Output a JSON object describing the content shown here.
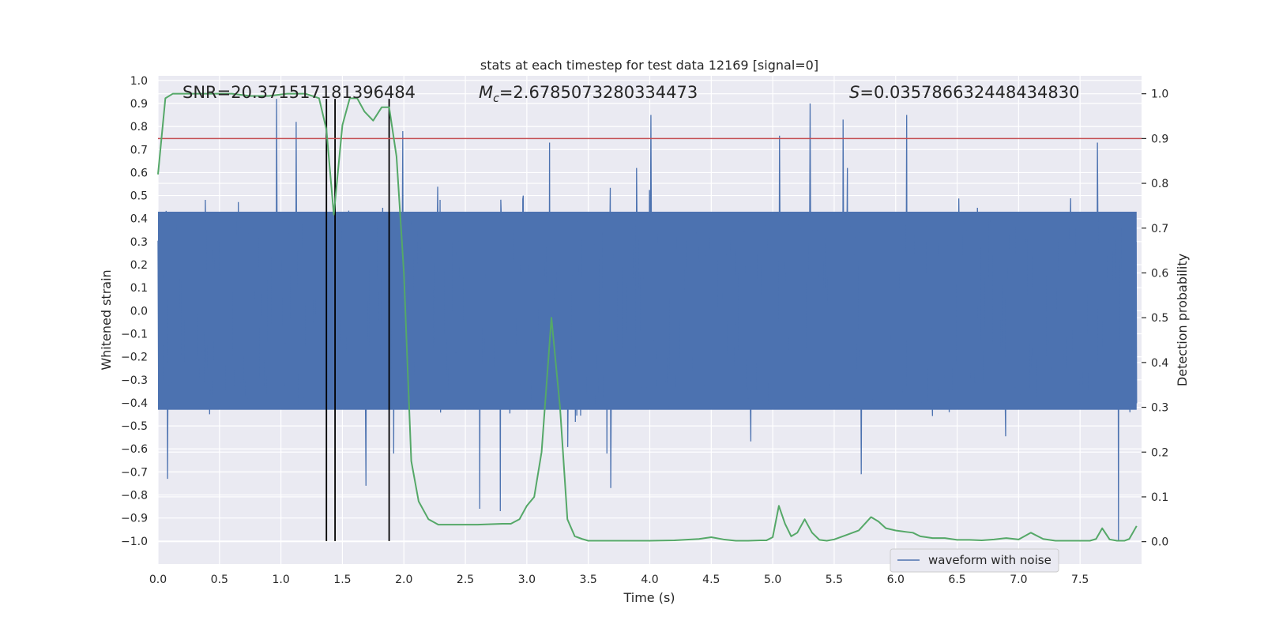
{
  "chart_data": {
    "type": "line",
    "title": "stats at each timestep for test data 12169 [signal=0]",
    "xlabel": "Time (s)",
    "ylabel_left": "Whitened strain",
    "ylabel_right": "Detection probability",
    "xlim": [
      0.0,
      8.0
    ],
    "ylim_left": [
      -1.1,
      1.02
    ],
    "ylim_right": [
      -0.05,
      1.04
    ],
    "x_ticks": [
      "0.0",
      "0.5",
      "1.0",
      "1.5",
      "2.0",
      "2.5",
      "3.0",
      "3.5",
      "4.0",
      "4.5",
      "5.0",
      "5.5",
      "6.0",
      "6.5",
      "7.0",
      "7.5"
    ],
    "x_tick_values": [
      0.0,
      0.5,
      1.0,
      1.5,
      2.0,
      2.5,
      3.0,
      3.5,
      4.0,
      4.5,
      5.0,
      5.5,
      6.0,
      6.5,
      7.0,
      7.5
    ],
    "y_left_ticks": [
      "1.0",
      "0.9",
      "0.8",
      "0.7",
      "0.6",
      "0.5",
      "0.4",
      "0.3",
      "0.2",
      "0.1",
      "0.0",
      "−0.1",
      "−0.2",
      "−0.3",
      "−0.4",
      "−0.5",
      "−0.6",
      "−0.7",
      "−0.8",
      "−0.9",
      "−1.0"
    ],
    "y_left_tick_values": [
      1.0,
      0.9,
      0.8,
      0.7,
      0.6,
      0.5,
      0.4,
      0.3,
      0.2,
      0.1,
      0.0,
      -0.1,
      -0.2,
      -0.3,
      -0.4,
      -0.5,
      -0.6,
      -0.7,
      -0.8,
      -0.9,
      -1.0
    ],
    "y_right_ticks": [
      "1.0",
      "0.9",
      "0.8",
      "0.7",
      "0.6",
      "0.5",
      "0.4",
      "0.3",
      "0.2",
      "0.1",
      "0.0"
    ],
    "y_right_tick_values": [
      1.0,
      0.9,
      0.8,
      0.7,
      0.6,
      0.5,
      0.4,
      0.3,
      0.2,
      0.1,
      0.0
    ],
    "annotations": {
      "snr": "SNR=20.371517181396484",
      "mc_symbol": "M",
      "mc_subscript": "c",
      "mc_value": "=2.6785073280334473",
      "s_symbol": "S",
      "s_value": "=0.035786632448434830"
    },
    "threshold": {
      "axis": "right",
      "value": 0.9,
      "color": "#c44e52"
    },
    "vertical_markers": {
      "x": [
        1.37,
        1.44,
        1.88
      ],
      "y_range": [
        -1.0,
        0.92
      ],
      "color": "#000000"
    },
    "waveform": {
      "name": "waveform with noise",
      "color": "#4c72b0",
      "duration_s": 8.0,
      "samples": 2048,
      "seed": 12169,
      "noise_std": 0.17,
      "core_band": [
        -0.43,
        0.43
      ],
      "spikes": [
        {
          "t": 0.97,
          "v": 0.92
        },
        {
          "t": 1.13,
          "v": 0.82
        },
        {
          "t": 2.0,
          "v": 0.78
        },
        {
          "t": 3.2,
          "v": 0.73
        },
        {
          "t": 4.03,
          "v": 0.85
        },
        {
          "t": 5.08,
          "v": 0.76
        },
        {
          "t": 5.33,
          "v": 0.9
        },
        {
          "t": 5.6,
          "v": 0.83
        },
        {
          "t": 6.12,
          "v": 0.85
        },
        {
          "t": 7.68,
          "v": 0.73
        },
        {
          "t": 0.08,
          "v": -0.73
        },
        {
          "t": 1.7,
          "v": -0.76
        },
        {
          "t": 2.63,
          "v": -0.86
        },
        {
          "t": 2.8,
          "v": -0.87
        },
        {
          "t": 3.7,
          "v": -0.77
        },
        {
          "t": 5.75,
          "v": -0.71
        },
        {
          "t": 7.85,
          "v": -1.0
        }
      ]
    },
    "probability": {
      "name": "detection probability",
      "color": "#55a868",
      "x": [
        0.0,
        0.06,
        0.12,
        0.2,
        0.3,
        0.45,
        0.6,
        0.75,
        0.9,
        1.05,
        1.2,
        1.31,
        1.37,
        1.43,
        1.5,
        1.56,
        1.62,
        1.68,
        1.75,
        1.82,
        1.88,
        1.94,
        2.0,
        2.06,
        2.12,
        2.2,
        2.28,
        2.4,
        2.6,
        2.8,
        2.87,
        2.94,
        3.0,
        3.06,
        3.12,
        3.2,
        3.27,
        3.33,
        3.39,
        3.45,
        3.5,
        3.6,
        3.8,
        4.0,
        4.2,
        4.4,
        4.5,
        4.6,
        4.7,
        4.8,
        4.9,
        4.95,
        5.0,
        5.05,
        5.1,
        5.15,
        5.2,
        5.26,
        5.32,
        5.38,
        5.44,
        5.5,
        5.6,
        5.7,
        5.8,
        5.86,
        5.92,
        6.0,
        6.08,
        6.14,
        6.2,
        6.3,
        6.4,
        6.5,
        6.6,
        6.7,
        6.8,
        6.9,
        7.0,
        7.1,
        7.2,
        7.3,
        7.4,
        7.5,
        7.58,
        7.63,
        7.68,
        7.74,
        7.8,
        7.86,
        7.9,
        7.96
      ],
      "y": [
        0.82,
        0.99,
        1.0,
        1.0,
        1.0,
        1.0,
        1.0,
        0.995,
        0.995,
        1.0,
        1.0,
        0.99,
        0.92,
        0.73,
        0.93,
        0.99,
        0.99,
        0.96,
        0.94,
        0.97,
        0.97,
        0.86,
        0.6,
        0.18,
        0.09,
        0.05,
        0.038,
        0.038,
        0.038,
        0.04,
        0.04,
        0.05,
        0.08,
        0.1,
        0.2,
        0.5,
        0.3,
        0.05,
        0.012,
        0.006,
        0.002,
        0.002,
        0.002,
        0.002,
        0.003,
        0.006,
        0.01,
        0.005,
        0.002,
        0.002,
        0.003,
        0.003,
        0.01,
        0.08,
        0.04,
        0.012,
        0.02,
        0.05,
        0.02,
        0.004,
        0.002,
        0.005,
        0.015,
        0.025,
        0.055,
        0.045,
        0.03,
        0.025,
        0.022,
        0.02,
        0.012,
        0.008,
        0.008,
        0.004,
        0.004,
        0.003,
        0.005,
        0.008,
        0.005,
        0.02,
        0.006,
        0.002,
        0.002,
        0.002,
        0.002,
        0.006,
        0.03,
        0.005,
        0.002,
        0.002,
        0.006,
        0.035
      ]
    },
    "legend": {
      "label": "waveform with noise",
      "position": "lower-right"
    },
    "grid": true
  }
}
